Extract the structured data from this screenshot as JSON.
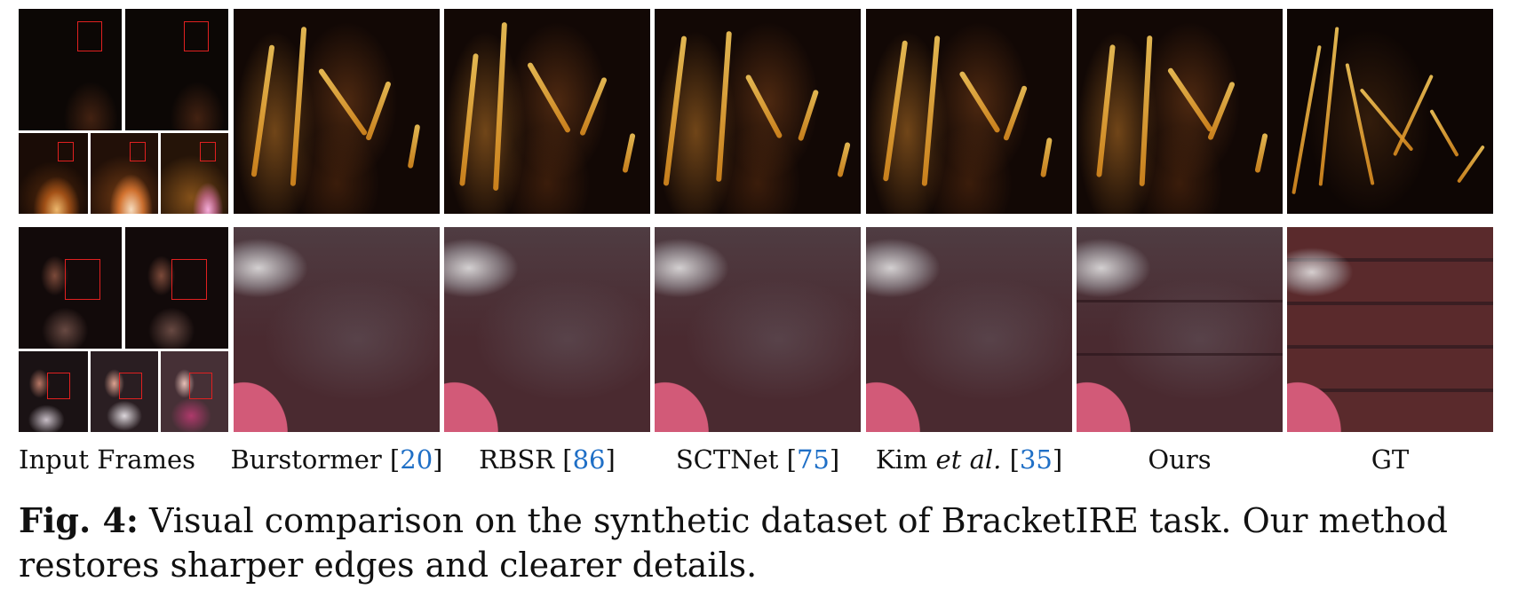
{
  "figure": {
    "columns": [
      {
        "label": "Input Frames"
      },
      {
        "label": "Burstormer",
        "ref": "20"
      },
      {
        "label": "RBSR",
        "ref": "86"
      },
      {
        "label": "SCTNet",
        "ref": "75"
      },
      {
        "label_main": "Kim",
        "label_italic": "et al.",
        "ref": "35"
      },
      {
        "label": "Ours"
      },
      {
        "label": "GT"
      }
    ],
    "caption_number": "Fig. 4:",
    "caption_text": "Visual comparison on the synthetic dataset of BracketIRE task. Our method restores sharper edges and clearer details."
  },
  "colors": {
    "reference_link": "#1f6fc6",
    "box": "#e02020"
  }
}
